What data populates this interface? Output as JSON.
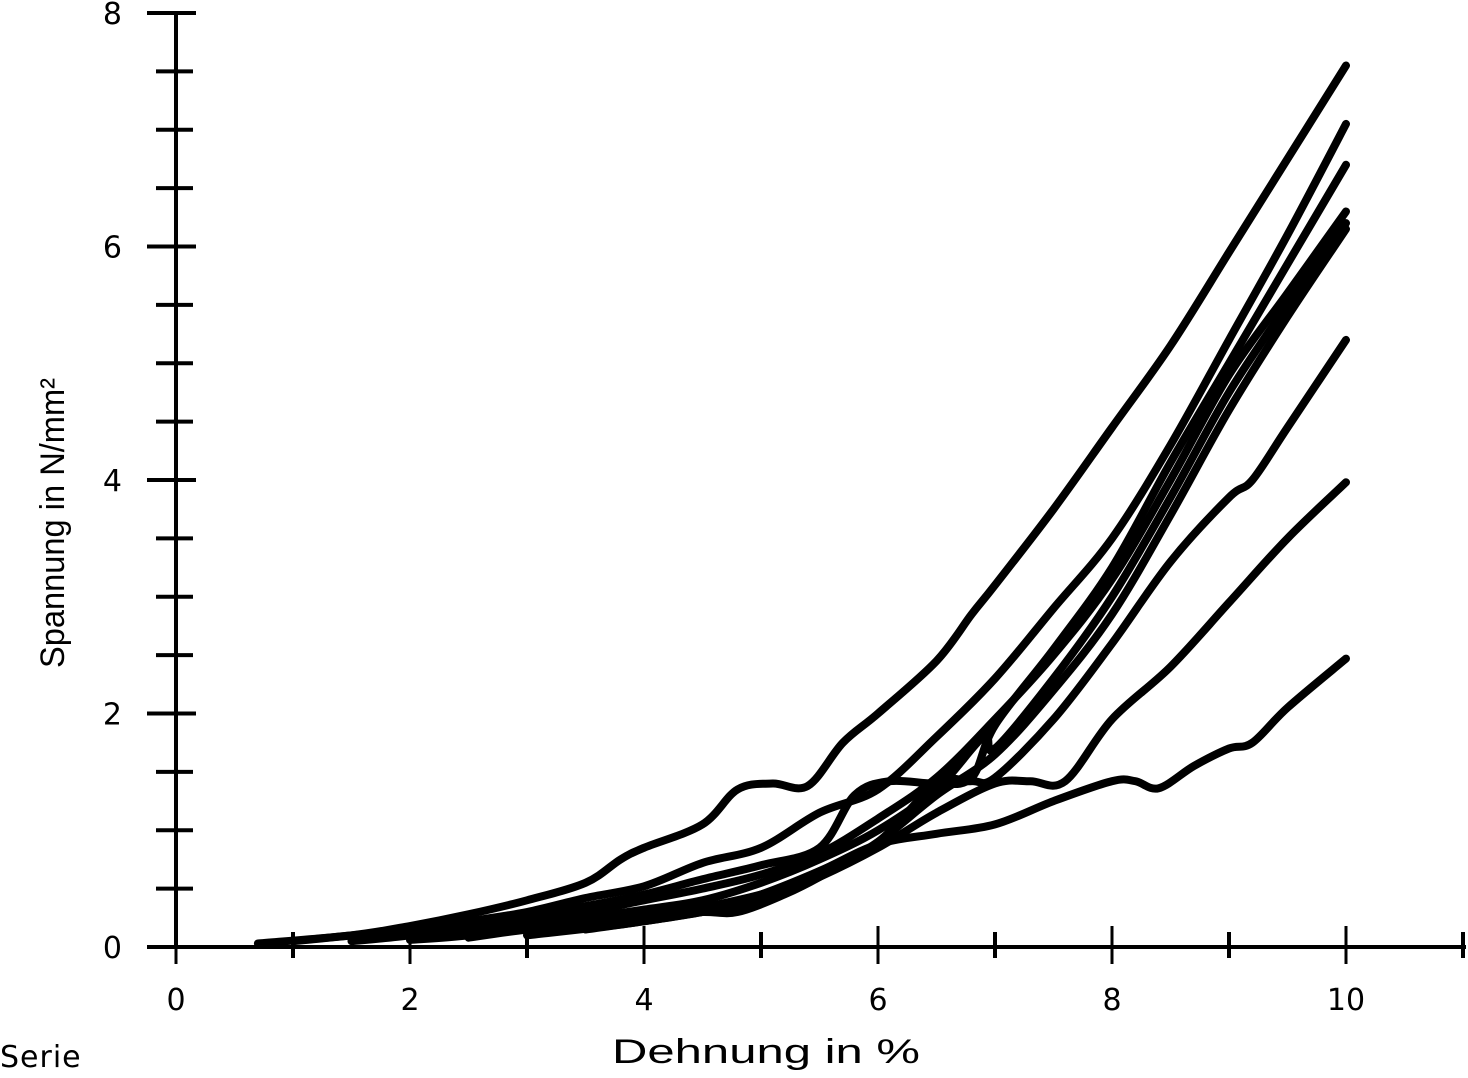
{
  "chart_data": {
    "type": "line",
    "title": "",
    "xlabel": "Dehnung in %",
    "ylabel": "Spannung in N/mm²",
    "xlim": [
      0,
      11
    ],
    "ylim": [
      0,
      8
    ],
    "x_ticks": [
      0,
      2,
      4,
      6,
      8,
      10
    ],
    "x_minor_ticks": [
      1,
      3,
      5,
      7,
      9,
      11
    ],
    "y_ticks": [
      0,
      2,
      4,
      6,
      8
    ],
    "y_minor_step": 0.5,
    "grid": false,
    "legend": null,
    "color": "#000000",
    "series": [
      {
        "name": "Probe 1",
        "points": [
          [
            0.7,
            0.03
          ],
          [
            1.5,
            0.1
          ],
          [
            2,
            0.18
          ],
          [
            2.5,
            0.28
          ],
          [
            3,
            0.4
          ],
          [
            3.5,
            0.55
          ],
          [
            3.8,
            0.75
          ],
          [
            4,
            0.85
          ],
          [
            4.5,
            1.05
          ],
          [
            4.8,
            1.35
          ],
          [
            5.1,
            1.4
          ],
          [
            5.4,
            1.38
          ],
          [
            5.7,
            1.75
          ],
          [
            6,
            2.0
          ],
          [
            6.5,
            2.45
          ],
          [
            6.8,
            2.85
          ],
          [
            7,
            3.1
          ],
          [
            7.5,
            3.75
          ],
          [
            8,
            4.45
          ],
          [
            8.5,
            5.15
          ],
          [
            9,
            5.95
          ],
          [
            9.5,
            6.75
          ],
          [
            10,
            7.55
          ]
        ]
      },
      {
        "name": "Probe 2",
        "points": [
          [
            1,
            0.05
          ],
          [
            2,
            0.15
          ],
          [
            2.5,
            0.22
          ],
          [
            3,
            0.3
          ],
          [
            3.5,
            0.42
          ],
          [
            4,
            0.52
          ],
          [
            4.5,
            0.72
          ],
          [
            5,
            0.85
          ],
          [
            5.5,
            1.15
          ],
          [
            6,
            1.35
          ],
          [
            6.5,
            1.8
          ],
          [
            7,
            2.3
          ],
          [
            7.5,
            2.9
          ],
          [
            8,
            3.5
          ],
          [
            8.5,
            4.3
          ],
          [
            9,
            5.2
          ],
          [
            9.5,
            6.1
          ],
          [
            10,
            7.05
          ]
        ]
      },
      {
        "name": "Probe 3",
        "points": [
          [
            1.5,
            0.05
          ],
          [
            2,
            0.1
          ],
          [
            2.5,
            0.18
          ],
          [
            3,
            0.28
          ],
          [
            3.5,
            0.35
          ],
          [
            4,
            0.45
          ],
          [
            4.5,
            0.58
          ],
          [
            5,
            0.7
          ],
          [
            5.5,
            0.85
          ],
          [
            5.8,
            1.3
          ],
          [
            6.1,
            1.42
          ],
          [
            6.5,
            1.4
          ],
          [
            6.8,
            1.45
          ],
          [
            7,
            1.9
          ],
          [
            7.5,
            2.55
          ],
          [
            8,
            3.25
          ],
          [
            8.5,
            4.15
          ],
          [
            9,
            5.0
          ],
          [
            9.5,
            5.85
          ],
          [
            10,
            6.7
          ]
        ]
      },
      {
        "name": "Probe 4",
        "points": [
          [
            2,
            0.08
          ],
          [
            2.5,
            0.14
          ],
          [
            3,
            0.22
          ],
          [
            3.5,
            0.3
          ],
          [
            4,
            0.4
          ],
          [
            4.5,
            0.5
          ],
          [
            5,
            0.62
          ],
          [
            5.5,
            0.8
          ],
          [
            6,
            1.1
          ],
          [
            6.5,
            1.45
          ],
          [
            7,
            1.95
          ],
          [
            7.5,
            2.5
          ],
          [
            8,
            3.15
          ],
          [
            8.5,
            4.0
          ],
          [
            9,
            4.9
          ],
          [
            9.5,
            5.6
          ],
          [
            10,
            6.3
          ]
        ]
      },
      {
        "name": "Probe 5",
        "points": [
          [
            2,
            0.06
          ],
          [
            2.5,
            0.1
          ],
          [
            3,
            0.18
          ],
          [
            3.5,
            0.25
          ],
          [
            4,
            0.32
          ],
          [
            4.5,
            0.4
          ],
          [
            5,
            0.55
          ],
          [
            5.5,
            0.75
          ],
          [
            6,
            1.0
          ],
          [
            6.5,
            1.35
          ],
          [
            6.9,
            1.8
          ],
          [
            7,
            1.7
          ],
          [
            7.5,
            2.3
          ],
          [
            8,
            3.0
          ],
          [
            8.5,
            3.85
          ],
          [
            9,
            4.75
          ],
          [
            9.5,
            5.5
          ],
          [
            10,
            6.2
          ]
        ]
      },
      {
        "name": "Probe 6",
        "points": [
          [
            2.5,
            0.08
          ],
          [
            3,
            0.15
          ],
          [
            3.5,
            0.2
          ],
          [
            4,
            0.28
          ],
          [
            4.5,
            0.3
          ],
          [
            4.8,
            0.3
          ],
          [
            5.2,
            0.45
          ],
          [
            5.5,
            0.6
          ],
          [
            6,
            0.9
          ],
          [
            6.5,
            1.3
          ],
          [
            7,
            1.65
          ],
          [
            7.5,
            2.2
          ],
          [
            8,
            2.85
          ],
          [
            8.5,
            3.7
          ],
          [
            9,
            4.6
          ],
          [
            9.5,
            5.4
          ],
          [
            10,
            6.15
          ]
        ]
      },
      {
        "name": "Probe 7",
        "points": [
          [
            3,
            0.12
          ],
          [
            4,
            0.25
          ],
          [
            5,
            0.45
          ],
          [
            5.5,
            0.65
          ],
          [
            6,
            0.9
          ],
          [
            6.5,
            1.4
          ],
          [
            6.8,
            1.42
          ],
          [
            7,
            1.45
          ],
          [
            7.5,
            1.95
          ],
          [
            8,
            2.6
          ],
          [
            8.5,
            3.3
          ],
          [
            9,
            3.85
          ],
          [
            9.2,
            4.0
          ],
          [
            9.5,
            4.45
          ],
          [
            10,
            5.2
          ]
        ]
      },
      {
        "name": "Probe 8",
        "points": [
          [
            3,
            0.1
          ],
          [
            4,
            0.22
          ],
          [
            5,
            0.4
          ],
          [
            5.5,
            0.6
          ],
          [
            6,
            0.85
          ],
          [
            6.5,
            1.15
          ],
          [
            7,
            1.4
          ],
          [
            7.3,
            1.42
          ],
          [
            7.6,
            1.42
          ],
          [
            8,
            1.95
          ],
          [
            8.5,
            2.4
          ],
          [
            9,
            2.95
          ],
          [
            9.5,
            3.5
          ],
          [
            10,
            3.98
          ]
        ]
      },
      {
        "name": "Probe 9",
        "points": [
          [
            3.5,
            0.15
          ],
          [
            4.5,
            0.3
          ],
          [
            5,
            0.45
          ],
          [
            5.5,
            0.65
          ],
          [
            6,
            0.88
          ],
          [
            6.5,
            0.97
          ],
          [
            7,
            1.05
          ],
          [
            7.5,
            1.25
          ],
          [
            8,
            1.42
          ],
          [
            8.2,
            1.42
          ],
          [
            8.4,
            1.36
          ],
          [
            8.7,
            1.55
          ],
          [
            9,
            1.7
          ],
          [
            9.2,
            1.75
          ],
          [
            9.5,
            2.05
          ],
          [
            10,
            2.47
          ]
        ]
      }
    ]
  },
  "footer": {
    "serie_label": "Serie"
  }
}
